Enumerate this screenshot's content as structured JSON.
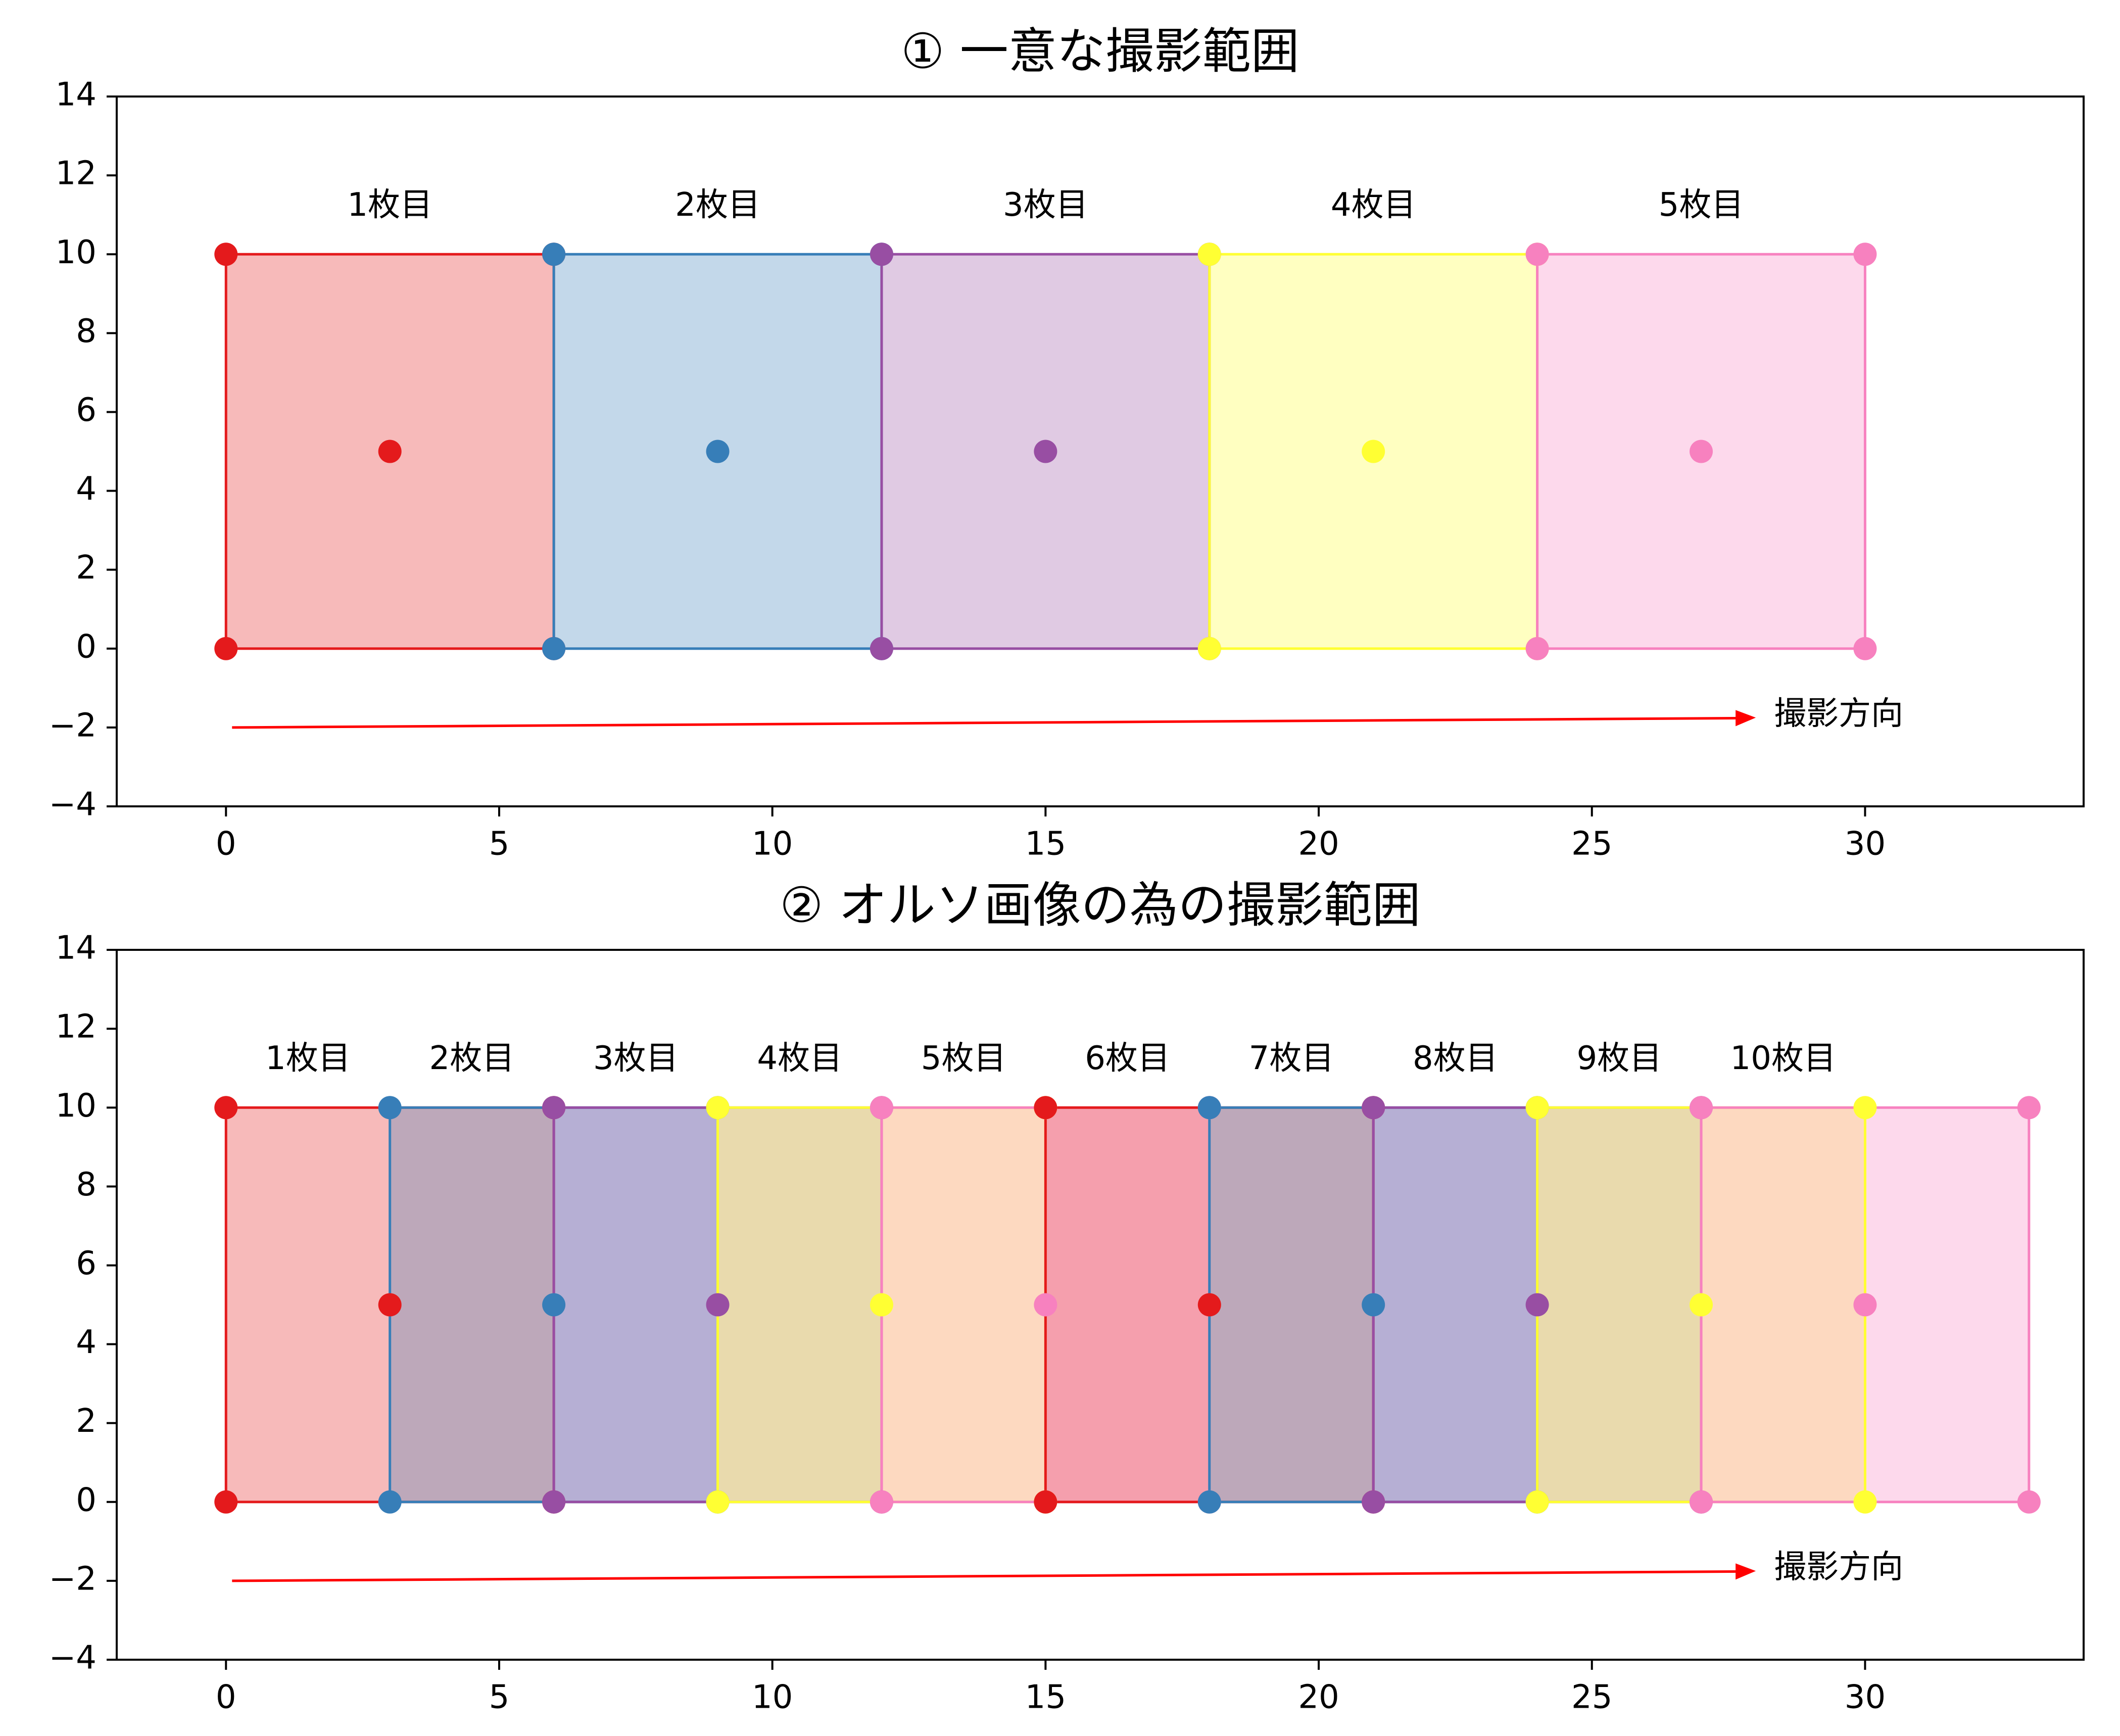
{
  "chart_data": [
    {
      "type": "area",
      "title": "① 一意な撮影範囲",
      "xlabel": "",
      "ylabel": "",
      "xlim": [
        -2,
        34
      ],
      "ylim": [
        -4,
        14
      ],
      "x_ticks": [
        "0",
        "5",
        "10",
        "15",
        "20",
        "25",
        "30"
      ],
      "y_ticks": [
        "−4",
        "−2",
        "0",
        "2",
        "4",
        "6",
        "8",
        "10",
        "12",
        "14"
      ],
      "grid": false,
      "series": [
        {
          "name": "1枚目",
          "color": "#e41a1c",
          "x": [
            0,
            6
          ],
          "y": [
            0,
            10
          ],
          "center": [
            3,
            5
          ]
        },
        {
          "name": "2枚目",
          "color": "#377eb8",
          "x": [
            6,
            12
          ],
          "y": [
            0,
            10
          ],
          "center": [
            9,
            5
          ]
        },
        {
          "name": "3枚目",
          "color": "#984ea3",
          "x": [
            12,
            18
          ],
          "y": [
            0,
            10
          ],
          "center": [
            15,
            5
          ]
        },
        {
          "name": "4枚目",
          "color": "#ffff33",
          "x": [
            18,
            24
          ],
          "y": [
            0,
            10
          ],
          "center": [
            21,
            5
          ]
        },
        {
          "name": "5枚目",
          "color": "#f781bf",
          "x": [
            24,
            30
          ],
          "y": [
            0,
            10
          ],
          "center": [
            27,
            5
          ]
        }
      ],
      "arrow": {
        "label": "撮影方向",
        "from": [
          0,
          -2
        ],
        "to": [
          28,
          -1.75
        ],
        "color": "#ff0000"
      }
    },
    {
      "type": "area",
      "title": "② オルソ画像の為の撮影範囲",
      "xlabel": "",
      "ylabel": "",
      "xlim": [
        -2,
        34
      ],
      "ylim": [
        -4,
        14
      ],
      "x_ticks": [
        "0",
        "5",
        "10",
        "15",
        "20",
        "25",
        "30"
      ],
      "y_ticks": [
        "−4",
        "−2",
        "0",
        "2",
        "4",
        "6",
        "8",
        "10",
        "12",
        "14"
      ],
      "grid": false,
      "series": [
        {
          "name": "1枚目",
          "color": "#e41a1c",
          "x": [
            0,
            6
          ],
          "y": [
            0,
            10
          ],
          "center": [
            3,
            5
          ]
        },
        {
          "name": "2枚目",
          "color": "#377eb8",
          "x": [
            3,
            9
          ],
          "y": [
            0,
            10
          ],
          "center": [
            6,
            5
          ]
        },
        {
          "name": "3枚目",
          "color": "#984ea3",
          "x": [
            6,
            12
          ],
          "y": [
            0,
            10
          ],
          "center": [
            9,
            5
          ]
        },
        {
          "name": "4枚目",
          "color": "#ffff33",
          "x": [
            9,
            15
          ],
          "y": [
            0,
            10
          ],
          "center": [
            12,
            5
          ]
        },
        {
          "name": "5枚目",
          "color": "#f781bf",
          "x": [
            12,
            18
          ],
          "y": [
            0,
            10
          ],
          "center": [
            15,
            5
          ]
        },
        {
          "name": "6枚目",
          "color": "#e41a1c",
          "x": [
            15,
            21
          ],
          "y": [
            0,
            10
          ],
          "center": [
            18,
            5
          ]
        },
        {
          "name": "7枚目",
          "color": "#377eb8",
          "x": [
            18,
            24
          ],
          "y": [
            0,
            10
          ],
          "center": [
            21,
            5
          ]
        },
        {
          "name": "8枚目",
          "color": "#984ea3",
          "x": [
            21,
            27
          ],
          "y": [
            0,
            10
          ],
          "center": [
            24,
            5
          ]
        },
        {
          "name": "9枚目",
          "color": "#ffff33",
          "x": [
            24,
            30
          ],
          "y": [
            0,
            10
          ],
          "center": [
            27,
            5
          ]
        },
        {
          "name": "10枚目",
          "color": "#f781bf",
          "x": [
            27,
            33
          ],
          "y": [
            0,
            10
          ],
          "center": [
            30,
            5
          ]
        }
      ],
      "arrow": {
        "label": "撮影方向",
        "from": [
          0,
          -2
        ],
        "to": [
          28,
          -1.75
        ],
        "color": "#ff0000"
      }
    }
  ]
}
